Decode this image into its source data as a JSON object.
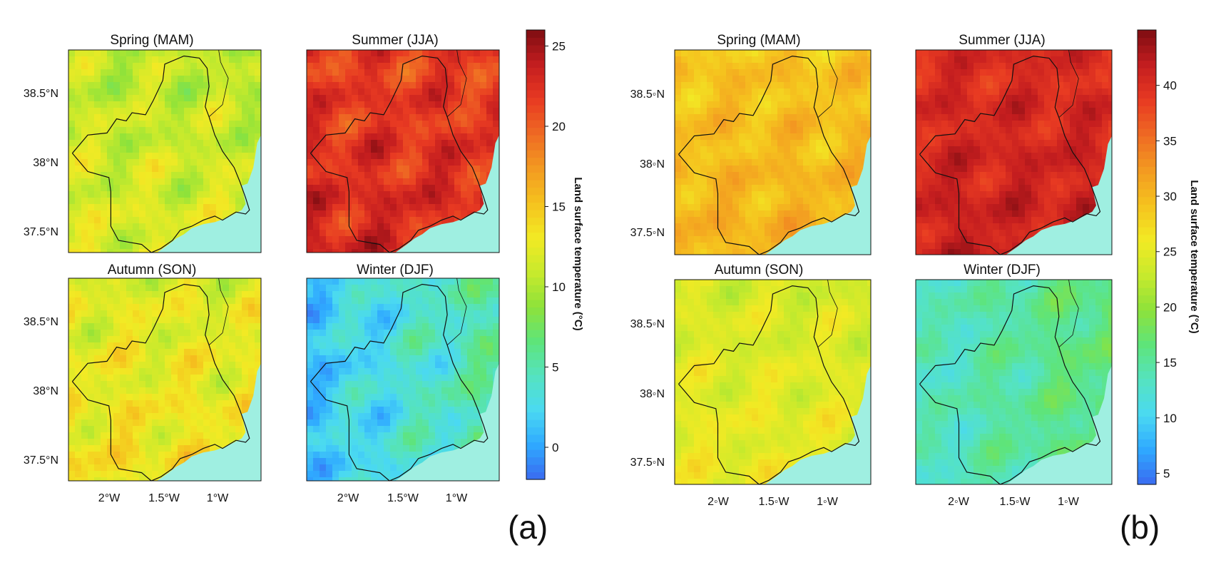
{
  "colors": {
    "sea": "#9fefe1",
    "border": "#111111",
    "scale": [
      "#3a6af0",
      "#2fa9ff",
      "#4ad9f2",
      "#55e3c0",
      "#5ee47a",
      "#8ee23a",
      "#c8ea2c",
      "#f2ea24",
      "#f5c21e",
      "#f39a21",
      "#ef6a23",
      "#e83a22",
      "#c41d1f",
      "#7e0d12"
    ]
  },
  "panels": [
    {
      "label": "(a)",
      "colorbar": {
        "label": "Land surface temperature (°C)",
        "min": -2,
        "max": 26,
        "ticks": [
          0,
          5,
          10,
          15,
          20,
          25
        ]
      },
      "lat_ticks": [
        "38.5°N",
        "38°N",
        "37.5°N"
      ],
      "lon_ticks": [
        "2°W",
        "1.5°W",
        "1°W"
      ],
      "maps": [
        {
          "title": "Spring (MAM)",
          "mean_value": 10.5
        },
        {
          "title": "Summer (JJA)",
          "mean_value": 21.5
        },
        {
          "title": "Autumn (SON)",
          "mean_value": 12
        },
        {
          "title": "Winter (DJF)",
          "mean_value": 3.5
        }
      ]
    },
    {
      "label": "(b)",
      "colorbar": {
        "label": "Land surface temperature (°C)",
        "min": 4,
        "max": 45,
        "ticks": [
          5,
          10,
          15,
          20,
          25,
          30,
          35,
          40
        ]
      },
      "lat_ticks": [
        "38.5◦N",
        "38◦N",
        "37.5◦N"
      ],
      "lon_ticks": [
        "2◦W",
        "1.5◦W",
        "1◦W"
      ],
      "maps": [
        {
          "title": "Spring (MAM)",
          "mean_value": 29
        },
        {
          "title": "Summer (JJA)",
          "mean_value": 40
        },
        {
          "title": "Autumn (SON)",
          "mean_value": 24
        },
        {
          "title": "Winter (DJF)",
          "mean_value": 15
        }
      ]
    }
  ]
}
